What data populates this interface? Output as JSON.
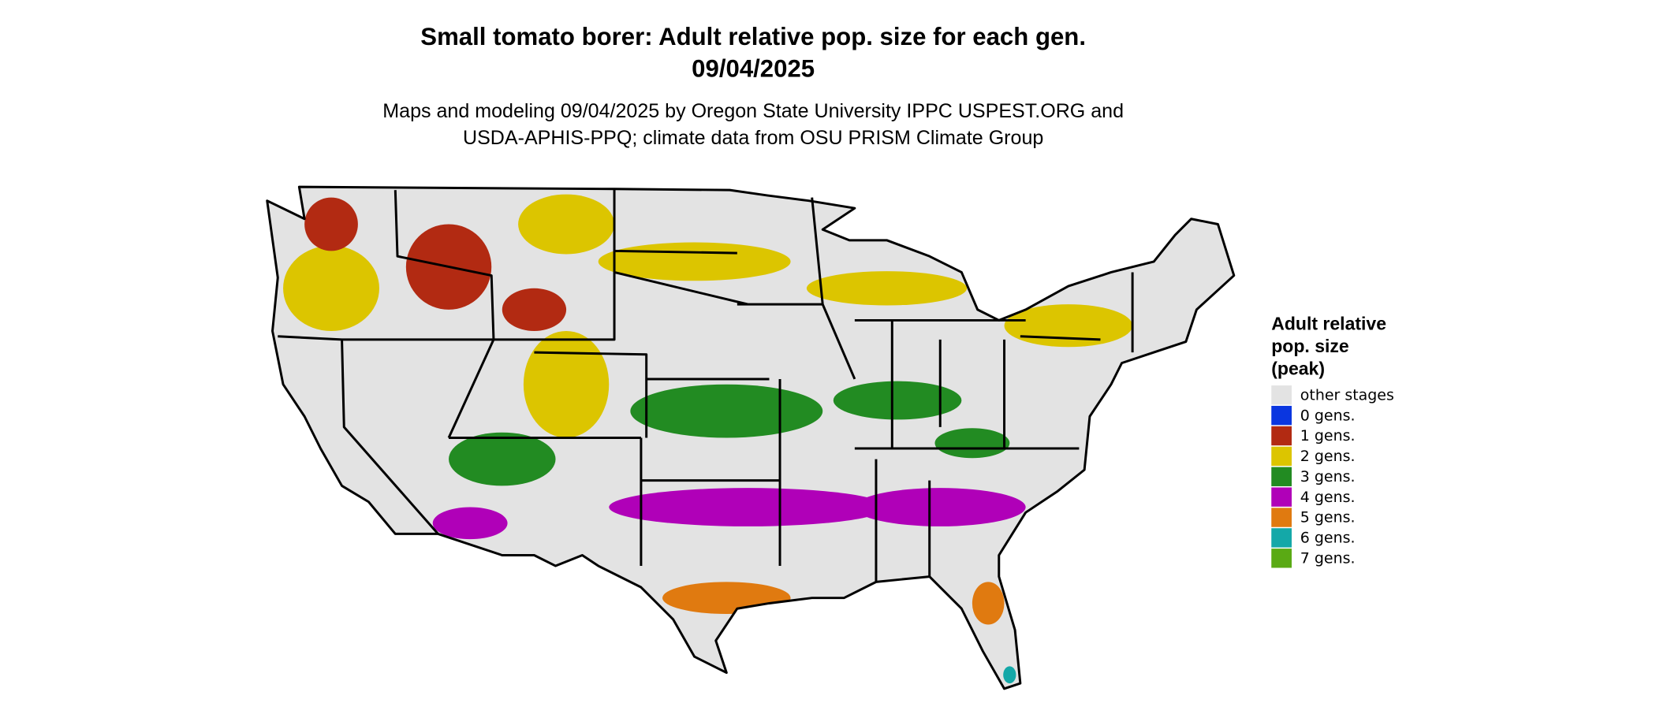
{
  "header": {
    "title": [
      "Small tomato borer: Adult relative pop. size for each gen.",
      "09/04/2025"
    ],
    "subtitle": [
      "Maps and modeling 09/04/2025 by Oregon State University IPPC USPEST.ORG and",
      "USDA-APHIS-PPQ; climate data from OSU PRISM Climate Group"
    ]
  },
  "legend": {
    "title": [
      "Adult relative",
      "pop. size",
      "(peak)"
    ],
    "items": [
      {
        "label": "other stages",
        "color": "#e3e3e3"
      },
      {
        "label": "0 gens.",
        "color": "#0a36e0"
      },
      {
        "label": "1 gens.",
        "color": "#b22a12"
      },
      {
        "label": "2 gens.",
        "color": "#dcc500"
      },
      {
        "label": "3 gens.",
        "color": "#228b22"
      },
      {
        "label": "4 gens.",
        "color": "#b000b8"
      },
      {
        "label": "5 gens.",
        "color": "#e07a10"
      },
      {
        "label": "6 gens.",
        "color": "#14a8a8"
      },
      {
        "label": "7 gens.",
        "color": "#5aaa14"
      }
    ]
  }
}
